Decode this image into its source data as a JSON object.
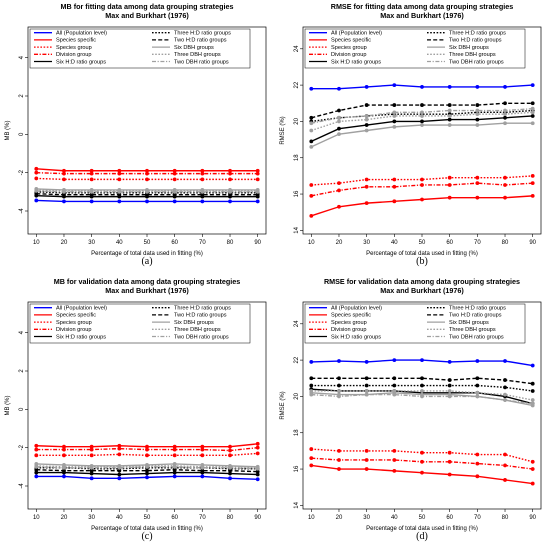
{
  "chart_data": [
    {
      "type": "line",
      "panel": "(a)",
      "title": "MB for fitting data among data grouping strategies",
      "subtitle": "Max and Burkhart (1976)",
      "xlabel": "Percentage of total data used in fitting (%)",
      "ylabel": "MB (%)",
      "x": [
        10,
        20,
        30,
        40,
        50,
        60,
        70,
        80,
        90
      ],
      "xlim": [
        7,
        93
      ],
      "ylim": [
        -5.2,
        5.6
      ],
      "yticks": [
        -4,
        -2,
        0,
        2,
        4
      ],
      "legend": "top",
      "series": [
        {
          "name": "All (Population level)",
          "color": "#0000ff",
          "dash": "solid",
          "values": [
            -3.45,
            -3.5,
            -3.5,
            -3.5,
            -3.5,
            -3.5,
            -3.5,
            -3.5,
            -3.5
          ]
        },
        {
          "name": "Species specific",
          "color": "#ff0000",
          "dash": "solid",
          "values": [
            -1.8,
            -1.9,
            -1.9,
            -1.9,
            -1.9,
            -1.9,
            -1.9,
            -1.9,
            -1.9
          ]
        },
        {
          "name": "Species group",
          "color": "#ff0000",
          "dash": "dotted",
          "values": [
            -2.3,
            -2.35,
            -2.35,
            -2.35,
            -2.35,
            -2.35,
            -2.35,
            -2.35,
            -2.35
          ]
        },
        {
          "name": "Division group",
          "color": "#ff0000",
          "dash": "dashdot",
          "values": [
            -2.0,
            -2.05,
            -2.05,
            -2.05,
            -2.05,
            -2.05,
            -2.05,
            -2.05,
            -2.05
          ]
        },
        {
          "name": "Six H:D ratio groups",
          "color": "#000000",
          "dash": "solid",
          "values": [
            -3.2,
            -3.25,
            -3.25,
            -3.25,
            -3.25,
            -3.25,
            -3.25,
            -3.25,
            -3.25
          ]
        },
        {
          "name": "Three H:D ratio groups",
          "color": "#000000",
          "dash": "dotted",
          "values": [
            -3.0,
            -3.05,
            -3.05,
            -3.05,
            -3.05,
            -3.05,
            -3.05,
            -3.05,
            -3.05
          ]
        },
        {
          "name": "Two H:D ratio groups",
          "color": "#000000",
          "dash": "dashed",
          "values": [
            -3.1,
            -3.15,
            -3.15,
            -3.15,
            -3.15,
            -3.15,
            -3.15,
            -3.15,
            -3.15
          ]
        },
        {
          "name": "Six DBH groups",
          "color": "#a0a0a0",
          "dash": "solid",
          "values": [
            -2.85,
            -2.9,
            -2.9,
            -2.9,
            -2.9,
            -2.9,
            -2.9,
            -2.9,
            -2.9
          ]
        },
        {
          "name": "Three DBH groups",
          "color": "#a0a0a0",
          "dash": "dotted",
          "values": [
            -2.9,
            -2.95,
            -2.95,
            -2.95,
            -2.95,
            -2.95,
            -2.95,
            -2.95,
            -2.95
          ]
        },
        {
          "name": "Two DBH ratio groups",
          "color": "#a0a0a0",
          "dash": "dashdot",
          "values": [
            -2.95,
            -3.0,
            -3.0,
            -3.0,
            -3.0,
            -3.0,
            -3.0,
            -3.0,
            -3.0
          ]
        }
      ]
    },
    {
      "type": "line",
      "panel": "(b)",
      "title": "RMSE for fitting data among data grouping strategies",
      "subtitle": "Max and Burkhart (1976)",
      "xlabel": "Percentage of total data used in fitting (%)",
      "ylabel": "RMSE (%)",
      "x": [
        10,
        20,
        30,
        40,
        50,
        60,
        70,
        80,
        90
      ],
      "xlim": [
        7,
        93
      ],
      "ylim": [
        13.8,
        25.2
      ],
      "yticks": [
        14,
        16,
        18,
        20,
        22,
        24
      ],
      "legend": "top",
      "series": [
        {
          "name": "All (Population level)",
          "color": "#0000ff",
          "dash": "solid",
          "values": [
            21.8,
            21.8,
            21.9,
            22.0,
            21.9,
            21.9,
            21.9,
            21.9,
            22.0
          ]
        },
        {
          "name": "Species specific",
          "color": "#ff0000",
          "dash": "solid",
          "values": [
            14.8,
            15.3,
            15.5,
            15.6,
            15.7,
            15.8,
            15.8,
            15.8,
            15.9
          ]
        },
        {
          "name": "Species group",
          "color": "#ff0000",
          "dash": "dotted",
          "values": [
            16.5,
            16.6,
            16.8,
            16.8,
            16.8,
            16.9,
            16.9,
            16.9,
            17.0
          ]
        },
        {
          "name": "Division group",
          "color": "#ff0000",
          "dash": "dashdot",
          "values": [
            15.9,
            16.2,
            16.4,
            16.4,
            16.5,
            16.5,
            16.6,
            16.5,
            16.6
          ]
        },
        {
          "name": "Six H:D ratio groups",
          "color": "#000000",
          "dash": "solid",
          "values": [
            18.9,
            19.6,
            19.8,
            20.0,
            20.0,
            20.1,
            20.1,
            20.2,
            20.3
          ]
        },
        {
          "name": "Three H:D ratio groups",
          "color": "#000000",
          "dash": "dotted",
          "values": [
            20.0,
            20.2,
            20.3,
            20.4,
            20.4,
            20.4,
            20.5,
            20.5,
            20.6
          ]
        },
        {
          "name": "Two H:D ratio groups",
          "color": "#000000",
          "dash": "dashed",
          "values": [
            20.2,
            20.6,
            20.9,
            20.9,
            20.9,
            20.9,
            20.9,
            21.0,
            21.0
          ]
        },
        {
          "name": "Six DBH groups",
          "color": "#a0a0a0",
          "dash": "solid",
          "values": [
            18.6,
            19.3,
            19.5,
            19.7,
            19.8,
            19.8,
            19.8,
            19.9,
            19.9
          ]
        },
        {
          "name": "Three DBH groups",
          "color": "#a0a0a0",
          "dash": "dotted",
          "values": [
            19.5,
            20.0,
            20.1,
            20.3,
            20.3,
            20.3,
            20.4,
            20.4,
            20.5
          ]
        },
        {
          "name": "Two DBH ratio groups",
          "color": "#a0a0a0",
          "dash": "dashdot",
          "values": [
            19.9,
            20.2,
            20.3,
            20.5,
            20.5,
            20.6,
            20.6,
            20.6,
            20.7
          ]
        }
      ]
    },
    {
      "type": "line",
      "panel": "(c)",
      "title": "MB for validation data among data grouping strategies",
      "subtitle": "Max and Burkhart (1976)",
      "xlabel": "Percentage of total data used in fitting (%)",
      "ylabel": "MB (%)",
      "x": [
        10,
        20,
        30,
        40,
        50,
        60,
        70,
        80,
        90
      ],
      "xlim": [
        7,
        93
      ],
      "ylim": [
        -5.2,
        5.6
      ],
      "yticks": [
        -4,
        -2,
        0,
        2,
        4
      ],
      "legend": "top",
      "series": [
        {
          "name": "All (Population level)",
          "color": "#0000ff",
          "dash": "solid",
          "values": [
            -3.5,
            -3.5,
            -3.6,
            -3.6,
            -3.55,
            -3.5,
            -3.5,
            -3.6,
            -3.65
          ]
        },
        {
          "name": "Species specific",
          "color": "#ff0000",
          "dash": "solid",
          "values": [
            -1.9,
            -1.95,
            -1.95,
            -1.9,
            -1.95,
            -1.95,
            -1.95,
            -1.95,
            -1.8
          ]
        },
        {
          "name": "Species group",
          "color": "#ff0000",
          "dash": "dotted",
          "values": [
            -2.4,
            -2.4,
            -2.4,
            -2.35,
            -2.4,
            -2.4,
            -2.4,
            -2.4,
            -2.3
          ]
        },
        {
          "name": "Division group",
          "color": "#ff0000",
          "dash": "dashdot",
          "values": [
            -2.1,
            -2.1,
            -2.1,
            -2.05,
            -2.1,
            -2.1,
            -2.1,
            -2.15,
            -2.0
          ]
        },
        {
          "name": "Six H:D ratio groups",
          "color": "#000000",
          "dash": "solid",
          "values": [
            -3.3,
            -3.3,
            -3.35,
            -3.4,
            -3.35,
            -3.3,
            -3.3,
            -3.35,
            -3.4
          ]
        },
        {
          "name": "Three H:D ratio groups",
          "color": "#000000",
          "dash": "dotted",
          "values": [
            -3.05,
            -3.05,
            -3.1,
            -3.1,
            -3.05,
            -3.05,
            -3.05,
            -3.1,
            -3.1
          ]
        },
        {
          "name": "Two H:D ratio groups",
          "color": "#000000",
          "dash": "dashed",
          "values": [
            -3.15,
            -3.2,
            -3.2,
            -3.2,
            -3.2,
            -3.15,
            -3.2,
            -3.2,
            -3.25
          ]
        },
        {
          "name": "Six DBH groups",
          "color": "#a0a0a0",
          "dash": "solid",
          "values": [
            -2.85,
            -2.9,
            -2.95,
            -2.95,
            -2.9,
            -2.85,
            -2.9,
            -2.95,
            -3.0
          ]
        },
        {
          "name": "Three DBH groups",
          "color": "#a0a0a0",
          "dash": "dotted",
          "values": [
            -2.95,
            -3.0,
            -3.0,
            -3.0,
            -2.95,
            -2.95,
            -3.0,
            -3.0,
            -3.05
          ]
        },
        {
          "name": "Two DBH ratio groups",
          "color": "#a0a0a0",
          "dash": "dashdot",
          "values": [
            -3.0,
            -3.05,
            -3.05,
            -3.05,
            -3.0,
            -3.0,
            -3.05,
            -3.05,
            -3.1
          ]
        }
      ]
    },
    {
      "type": "line",
      "panel": "(d)",
      "title": "RMSE for validation data among data grouping strategies",
      "subtitle": "Max and Burkhart (1976)",
      "xlabel": "Percentage of total data used in fitting (%)",
      "ylabel": "RMSE (%)",
      "x": [
        10,
        20,
        30,
        40,
        50,
        60,
        70,
        80,
        90
      ],
      "xlim": [
        7,
        93
      ],
      "ylim": [
        13.8,
        25.2
      ],
      "yticks": [
        14,
        16,
        18,
        20,
        22,
        24
      ],
      "legend": "top",
      "series": [
        {
          "name": "All (Population level)",
          "color": "#0000ff",
          "dash": "solid",
          "values": [
            21.9,
            21.95,
            21.9,
            22.0,
            22.0,
            21.9,
            21.95,
            21.95,
            21.7
          ]
        },
        {
          "name": "Species specific",
          "color": "#ff0000",
          "dash": "solid",
          "values": [
            16.2,
            16.0,
            16.0,
            15.9,
            15.8,
            15.7,
            15.6,
            15.4,
            15.2
          ]
        },
        {
          "name": "Species group",
          "color": "#ff0000",
          "dash": "dotted",
          "values": [
            17.1,
            17.0,
            17.0,
            17.0,
            16.9,
            16.9,
            16.8,
            16.8,
            16.4
          ]
        },
        {
          "name": "Division group",
          "color": "#ff0000",
          "dash": "dashdot",
          "values": [
            16.6,
            16.5,
            16.5,
            16.5,
            16.4,
            16.4,
            16.3,
            16.2,
            16.0
          ]
        },
        {
          "name": "Six H:D ratio groups",
          "color": "#000000",
          "dash": "solid",
          "values": [
            20.4,
            20.3,
            20.3,
            20.3,
            20.2,
            20.2,
            20.2,
            20.0,
            19.6
          ]
        },
        {
          "name": "Three H:D ratio groups",
          "color": "#000000",
          "dash": "dotted",
          "values": [
            20.6,
            20.6,
            20.6,
            20.6,
            20.6,
            20.6,
            20.6,
            20.5,
            20.3
          ]
        },
        {
          "name": "Two H:D ratio groups",
          "color": "#000000",
          "dash": "dashed",
          "values": [
            21.0,
            21.0,
            21.0,
            21.0,
            21.0,
            20.9,
            21.0,
            20.9,
            20.7
          ]
        },
        {
          "name": "Six DBH groups",
          "color": "#a0a0a0",
          "dash": "solid",
          "values": [
            20.2,
            20.1,
            20.1,
            20.2,
            20.1,
            20.1,
            20.0,
            19.8,
            19.5
          ]
        },
        {
          "name": "Three DBH groups",
          "color": "#a0a0a0",
          "dash": "dotted",
          "values": [
            20.3,
            20.3,
            20.3,
            20.3,
            20.3,
            20.3,
            20.2,
            20.1,
            19.8
          ]
        },
        {
          "name": "Two DBH ratio groups",
          "color": "#a0a0a0",
          "dash": "dashdot",
          "values": [
            20.1,
            20.0,
            20.1,
            20.1,
            20.0,
            20.0,
            20.0,
            19.8,
            19.6
          ]
        }
      ]
    }
  ]
}
